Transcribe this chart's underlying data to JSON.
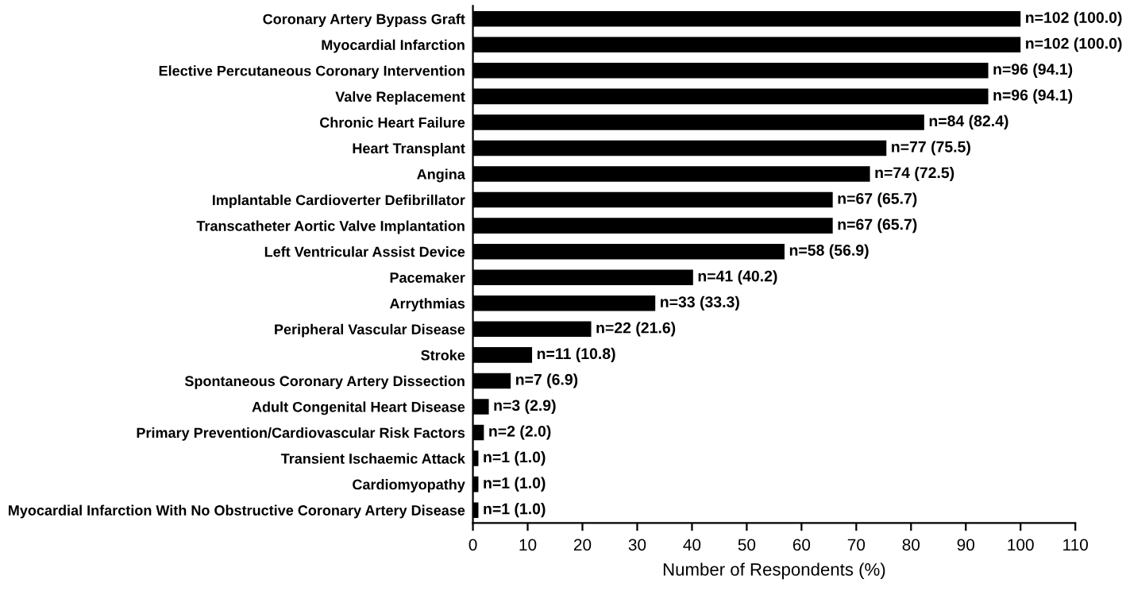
{
  "chart_data": {
    "type": "bar",
    "orientation": "horizontal",
    "xlabel": "Number of Respondents (%)",
    "categories": [
      "Coronary Artery Bypass Graft",
      "Myocardial Infarction",
      "Elective Percutaneous Coronary Intervention",
      "Valve Replacement",
      "Chronic Heart Failure",
      "Heart Transplant",
      "Angina",
      "Implantable Cardioverter Defibrillator",
      "Transcatheter Aortic Valve Implantation",
      "Left Ventricular Assist Device",
      "Pacemaker",
      "Arrythmias",
      "Peripheral Vascular Disease",
      "Stroke",
      "Spontaneous Coronary Artery Dissection",
      "Adult Congenital Heart Disease",
      "Primary Prevention/Cardiovascular Risk Factors",
      "Transient Ischaemic Attack",
      "Cardiomyopathy",
      "Myocardial Infarction With No Obstructive Coronary Artery Disease"
    ],
    "values": [
      100.0,
      100.0,
      94.1,
      94.1,
      82.4,
      75.5,
      72.5,
      65.7,
      65.7,
      56.9,
      40.2,
      33.3,
      21.6,
      10.8,
      6.9,
      2.9,
      2.0,
      1.0,
      1.0,
      1.0
    ],
    "value_labels": [
      "n=102 (100.0)",
      "n=102 (100.0)",
      "n=96 (94.1)",
      "n=96 (94.1)",
      "n=84 (82.4)",
      "n=77 (75.5)",
      "n=74 (72.5)",
      "n=67 (65.7)",
      "n=67 (65.7)",
      "n=58 (56.9)",
      "n=41 (40.2)",
      "n=33 (33.3)",
      "n=22 (21.6)",
      "n=11 (10.8)",
      "n=7 (6.9)",
      "n=3 (2.9)",
      "n=2 (2.0)",
      "n=1 (1.0)",
      "n=1 (1.0)",
      "n=1 (1.0)"
    ],
    "color": "#000000",
    "xlim": [
      0,
      110
    ],
    "xticks": [
      0,
      10,
      20,
      30,
      40,
      50,
      60,
      70,
      80,
      90,
      100,
      110
    ],
    "grid": false,
    "legend": false
  }
}
